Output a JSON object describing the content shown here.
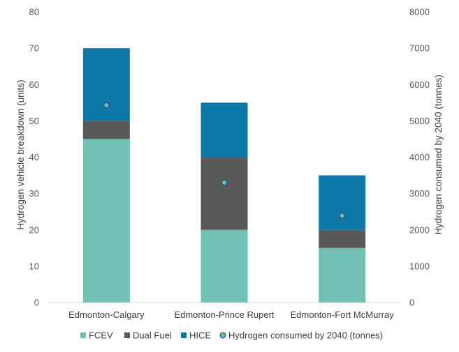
{
  "chart_data": {
    "type": "bar",
    "stacked": true,
    "categories": [
      "Edmonton-Calgary",
      "Edmonton-Prince Rupert",
      "Edmonton-Fort McMurray"
    ],
    "series": [
      {
        "name": "FCEV",
        "values": [
          45,
          20,
          15
        ],
        "color": "#70c1b3"
      },
      {
        "name": "Dual Fuel",
        "values": [
          5,
          20,
          5
        ],
        "color": "#595959"
      },
      {
        "name": "HICE",
        "values": [
          20,
          15,
          15
        ],
        "color": "#0e78a8"
      }
    ],
    "secondary_series": {
      "name": "Hydrogen consumed by 2040 (tonnes)",
      "type": "scatter",
      "values": [
        5430,
        3300,
        2390
      ],
      "color": "#4ec4d8",
      "marker_edge": "#404040"
    },
    "ylabel": "Hydrogen vehicle breakdown (units)",
    "y2label": "Hydrogen consumed by 2040 (tonnes)",
    "ylim": [
      0,
      80
    ],
    "y2lim": [
      0,
      8000
    ],
    "yticks": [
      0,
      10,
      20,
      30,
      40,
      50,
      60,
      70,
      80
    ],
    "y2ticks": [
      0,
      1000,
      2000,
      3000,
      4000,
      5000,
      6000,
      7000,
      8000
    ],
    "grid": false,
    "legend_position": "bottom"
  }
}
